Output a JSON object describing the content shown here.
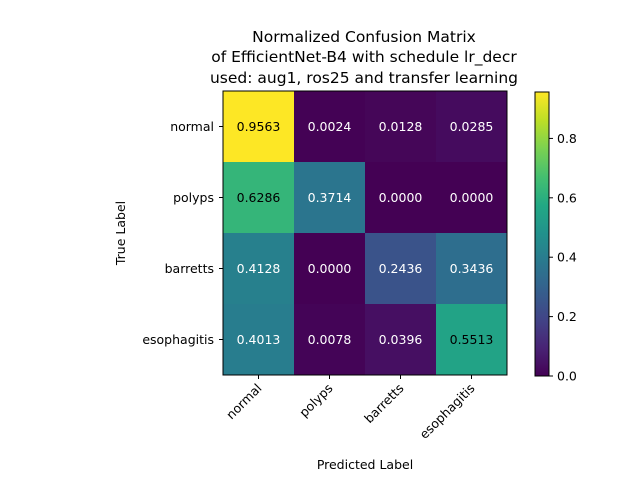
{
  "chart_data": {
    "type": "heatmap",
    "title_lines": [
      "Normalized Confusion Matrix",
      "of EfficientNet-B4 with schedule lr_decr",
      "used: aug1, ros25 and transfer learning"
    ],
    "xlabel": "Predicted Label",
    "ylabel": "True Label",
    "x_categories": [
      "normal",
      "polyps",
      "barretts",
      "esophagitis"
    ],
    "y_categories": [
      "normal",
      "polyps",
      "barretts",
      "esophagitis"
    ],
    "values": [
      [
        0.9563,
        0.0024,
        0.0128,
        0.0285
      ],
      [
        0.6286,
        0.3714,
        0.0,
        0.0
      ],
      [
        0.4128,
        0.0,
        0.2436,
        0.3436
      ],
      [
        0.4013,
        0.0078,
        0.0396,
        0.5513
      ]
    ],
    "value_labels": [
      [
        "0.9563",
        "0.0024",
        "0.0128",
        "0.0285"
      ],
      [
        "0.6286",
        "0.3714",
        "0.0000",
        "0.0000"
      ],
      [
        "0.4128",
        "0.0000",
        "0.2436",
        "0.3436"
      ],
      [
        "0.4013",
        "0.0078",
        "0.0396",
        "0.5513"
      ]
    ],
    "colormap": "viridis",
    "vmin": 0.0,
    "vmax": 0.9563,
    "colorbar_ticks": [
      {
        "value": 0.0,
        "label": "0.0"
      },
      {
        "value": 0.2,
        "label": "0.2"
      },
      {
        "value": 0.4,
        "label": "0.4"
      },
      {
        "value": 0.6,
        "label": "0.6"
      },
      {
        "value": 0.8,
        "label": "0.8"
      }
    ],
    "text_colors": {
      "dark_cell": "#ffffff",
      "light_cell": "#000000"
    }
  }
}
